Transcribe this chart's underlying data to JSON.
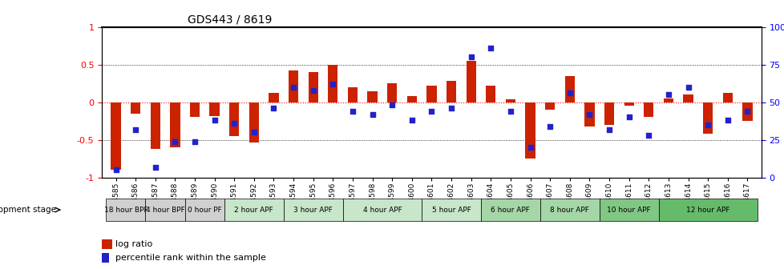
{
  "title": "GDS443 / 8619",
  "samples": [
    "GSM4585",
    "GSM4586",
    "GSM4587",
    "GSM4588",
    "GSM4589",
    "GSM4590",
    "GSM4591",
    "GSM4592",
    "GSM4593",
    "GSM4594",
    "GSM4595",
    "GSM4596",
    "GSM4597",
    "GSM4598",
    "GSM4599",
    "GSM4600",
    "GSM4601",
    "GSM4602",
    "GSM4603",
    "GSM4604",
    "GSM4605",
    "GSM4606",
    "GSM4607",
    "GSM4608",
    "GSM4609",
    "GSM4610",
    "GSM4611",
    "GSM4612",
    "GSM4613",
    "GSM4614",
    "GSM4615",
    "GSM4616",
    "GSM4617"
  ],
  "log_ratio": [
    -0.9,
    -0.15,
    -0.62,
    -0.6,
    -0.2,
    -0.18,
    -0.45,
    -0.53,
    0.12,
    0.42,
    0.4,
    0.5,
    0.2,
    0.15,
    0.25,
    0.08,
    0.22,
    0.28,
    0.55,
    0.22,
    0.04,
    -0.75,
    -0.1,
    0.35,
    -0.32,
    -0.3,
    -0.05,
    -0.2,
    0.05,
    0.1,
    -0.42,
    0.12,
    -0.25
  ],
  "percentile_rank": [
    5,
    32,
    7,
    24,
    24,
    38,
    36,
    30,
    46,
    60,
    58,
    62,
    44,
    42,
    48,
    38,
    44,
    46,
    80,
    86,
    44,
    20,
    34,
    56,
    42,
    32,
    40,
    28,
    55,
    60,
    35,
    38,
    44
  ],
  "stage_groups": [
    {
      "label": "18 hour BPF",
      "start": 0,
      "end": 2,
      "color": "#d0d0d0"
    },
    {
      "label": "4 hour BPF",
      "start": 2,
      "end": 4,
      "color": "#d0d0d0"
    },
    {
      "label": "0 hour PF",
      "start": 4,
      "end": 6,
      "color": "#d0d0d0"
    },
    {
      "label": "2 hour APF",
      "start": 6,
      "end": 9,
      "color": "#c8e6c9"
    },
    {
      "label": "3 hour APF",
      "start": 9,
      "end": 12,
      "color": "#c8e6c9"
    },
    {
      "label": "4 hour APF",
      "start": 12,
      "end": 16,
      "color": "#c8e6c9"
    },
    {
      "label": "5 hour APF",
      "start": 16,
      "end": 19,
      "color": "#c8e6c9"
    },
    {
      "label": "6 hour APF",
      "start": 19,
      "end": 22,
      "color": "#a5d6a7"
    },
    {
      "label": "8 hour APF",
      "start": 22,
      "end": 25,
      "color": "#a5d6a7"
    },
    {
      "label": "10 hour APF",
      "start": 25,
      "end": 28,
      "color": "#81c784"
    },
    {
      "label": "12 hour APF",
      "start": 28,
      "end": 33,
      "color": "#66bb6a"
    }
  ],
  "bar_color": "#cc2200",
  "dot_color": "#2222cc",
  "ylim": [
    -1.0,
    1.0
  ],
  "y2lim": [
    0,
    100
  ],
  "yticks_left": [
    -1.0,
    -0.5,
    0.0,
    0.5,
    1.0
  ],
  "yticks_right": [
    0,
    25,
    50,
    75,
    100
  ],
  "ytick_labels_left": [
    "-1",
    "-0.5",
    "0",
    "0.5",
    "1"
  ],
  "ytick_labels_right": [
    "0",
    "25",
    "50",
    "75",
    "100%"
  ]
}
